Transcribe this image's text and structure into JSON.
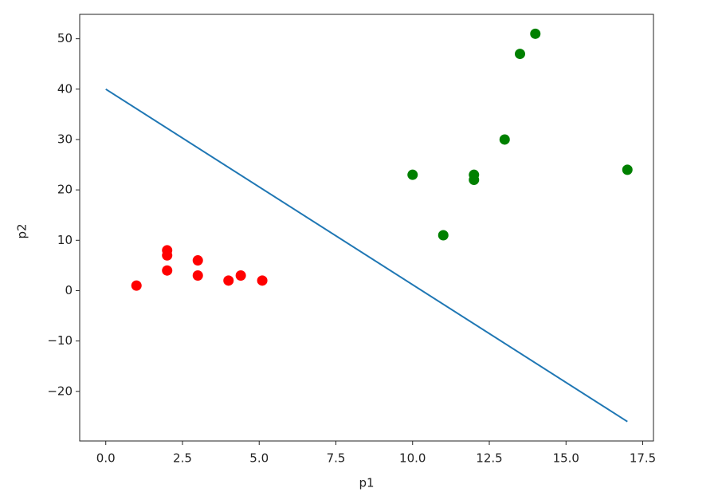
{
  "chart_data": {
    "type": "scatter",
    "xlabel": "p1",
    "ylabel": "p2",
    "xlim": [
      -0.85,
      17.85
    ],
    "ylim": [
      -29.85,
      54.85
    ],
    "xticks": [
      {
        "value": 0,
        "label": "0.0"
      },
      2.5,
      {
        "value": 5,
        "label": "5.0"
      },
      7.5,
      {
        "value": 10,
        "label": "10.0"
      },
      12.5,
      {
        "value": 15,
        "label": "15.0"
      },
      17.5
    ],
    "yticks": [
      {
        "value": -20,
        "label": "−20"
      },
      {
        "value": -10,
        "label": "−10"
      },
      0,
      10,
      20,
      30,
      40,
      50
    ],
    "series": [
      {
        "color": "#ff0000",
        "x": [
          1,
          2,
          2,
          2,
          3,
          3,
          4,
          4.4,
          5.1
        ],
        "y": [
          1,
          8,
          7,
          4,
          6,
          3,
          2,
          3,
          2
        ]
      },
      {
        "color": "#008000",
        "x": [
          10,
          11,
          12,
          12,
          13,
          13.5,
          14,
          17
        ],
        "y": [
          23,
          11,
          23,
          22,
          30,
          47,
          51,
          24
        ]
      }
    ],
    "lines": [
      {
        "color": "#1f77b4",
        "x": [
          0,
          17
        ],
        "y": [
          40,
          -26
        ]
      }
    ]
  }
}
